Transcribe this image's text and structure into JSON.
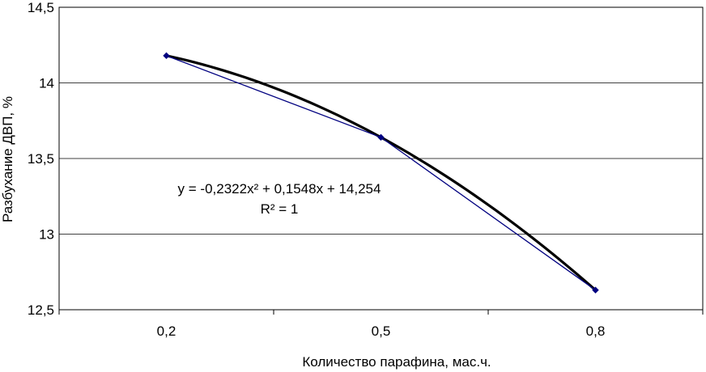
{
  "chart_data": {
    "type": "line",
    "categories": [
      "0,2",
      "0,5",
      "0,8"
    ],
    "series": [
      {
        "values": [
          14.18,
          13.64,
          12.63
        ],
        "color": "#000080",
        "marker": "diamond"
      }
    ],
    "trendline": {
      "type": "polynomial",
      "equation": "y = -0,2322x² + 0,1548x + 14,254",
      "r_squared": "R² = 1",
      "color": "#000000"
    },
    "title": "",
    "xlabel": "Количество парафина, мас.ч.",
    "ylabel": "Разбухание ДВП, %",
    "ylim": [
      12.5,
      14.5
    ],
    "yticks": [
      12.5,
      13,
      13.5,
      14,
      14.5
    ],
    "ytick_labels": [
      "12,5",
      "13",
      "13,5",
      "14",
      "14,5"
    ],
    "grid": true
  }
}
